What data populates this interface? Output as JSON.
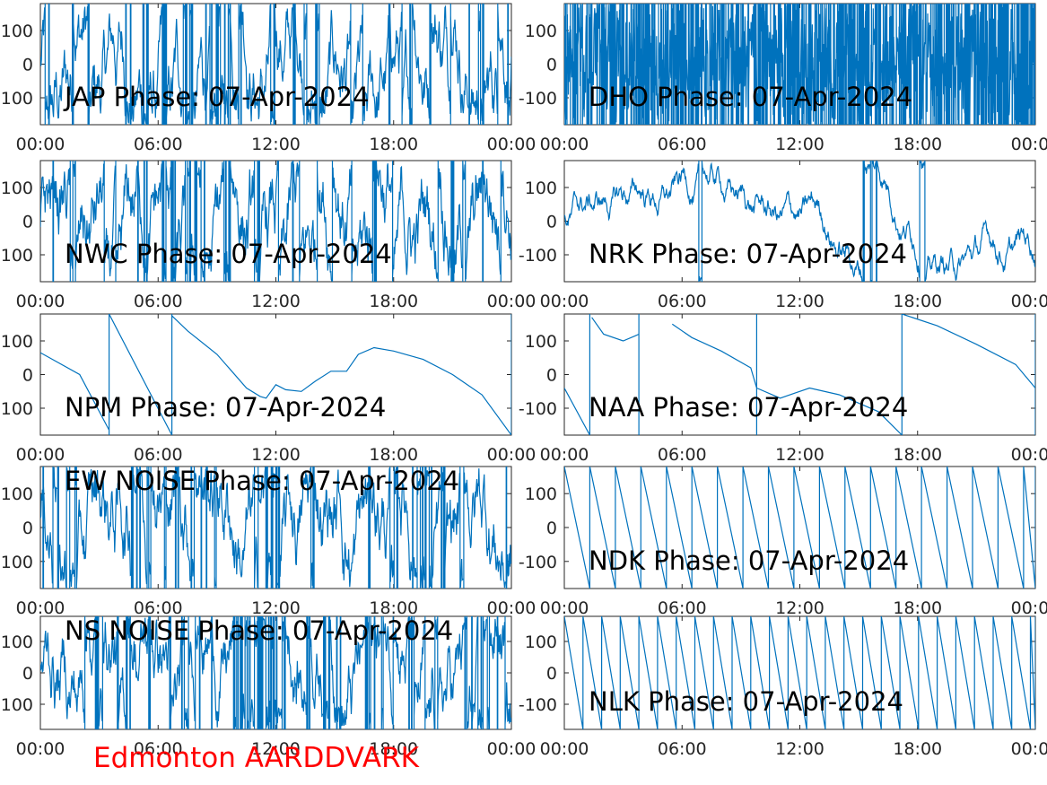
{
  "figure": {
    "footer_label": "Edmonton AARDDVARK",
    "line_color": "#0072bd",
    "footer_color": "#ff0000"
  },
  "chart_data": [
    {
      "type": "line",
      "title": "JAP Phase: 07-Apr-2024",
      "xlabel": "",
      "ylabel": "",
      "x_ticks": [
        "00:00",
        "06:00",
        "12:00",
        "18:00",
        "00:00"
      ],
      "y_ticks": [
        100,
        0,
        -100
      ],
      "y_tick_labels": [
        "100",
        "0",
        "-100"
      ],
      "xlim": [
        0,
        24
      ],
      "ylim": [
        -180,
        180
      ],
      "trace": "noisy"
    },
    {
      "type": "line",
      "title": "DHO Phase: 07-Apr-2024",
      "xlabel": "",
      "ylabel": "",
      "x_ticks": [
        "00:00",
        "06:00",
        "12:00",
        "18:00",
        "00:00"
      ],
      "y_ticks": [
        100,
        0,
        -100
      ],
      "y_tick_labels": [
        "100",
        "0",
        "-100"
      ],
      "xlim": [
        0,
        24
      ],
      "ylim": [
        -180,
        180
      ],
      "trace": "dense"
    },
    {
      "type": "line",
      "title": "NWC Phase: 07-Apr-2024",
      "xlabel": "",
      "ylabel": "",
      "x_ticks": [
        "00:00",
        "06:00",
        "12:00",
        "18:00",
        "00:00"
      ],
      "y_ticks": [
        100,
        0,
        -100
      ],
      "y_tick_labels": [
        "100",
        "0",
        "-100"
      ],
      "xlim": [
        0,
        24
      ],
      "ylim": [
        -180,
        180
      ],
      "trace": "noisy"
    },
    {
      "type": "line",
      "title": "NRK Phase: 07-Apr-2024",
      "xlabel": "",
      "ylabel": "",
      "x_ticks": [
        "00:00",
        "06:00",
        "12:00",
        "18:00",
        "00:00"
      ],
      "y_ticks": [
        100,
        0,
        -100
      ],
      "y_tick_labels": [
        "100",
        "0",
        "-100"
      ],
      "xlim": [
        0,
        24
      ],
      "ylim": [
        -180,
        180
      ],
      "trace": "nrk"
    },
    {
      "type": "line",
      "title": "NPM Phase: 07-Apr-2024",
      "xlabel": "",
      "ylabel": "",
      "x_ticks": [
        "00:00",
        "06:00",
        "12:00",
        "18:00",
        "00:00"
      ],
      "y_ticks": [
        100,
        0,
        -100
      ],
      "y_tick_labels": [
        "100",
        "0",
        "-100"
      ],
      "xlim": [
        0,
        24
      ],
      "ylim": [
        -180,
        180
      ],
      "trace": "series",
      "series": [
        {
          "x": [
            0,
            2,
            3.5
          ],
          "y": [
            65,
            0,
            -165
          ]
        },
        {
          "x": [
            3.5,
            6.7
          ],
          "y": [
            180,
            -180
          ]
        },
        {
          "x": [
            6.7,
            7.5,
            9,
            10.5,
            11.2,
            11.5,
            12,
            12.5,
            13.3,
            14,
            14.8,
            15.6,
            16.2,
            17,
            18,
            19.5,
            21,
            22.5,
            24
          ],
          "y": [
            175,
            130,
            60,
            -40,
            -65,
            -70,
            -30,
            -45,
            -50,
            -20,
            10,
            10,
            60,
            80,
            70,
            45,
            0,
            -60,
            -180
          ]
        }
      ]
    },
    {
      "type": "line",
      "title": "NAA Phase: 07-Apr-2024",
      "xlabel": "",
      "ylabel": "",
      "x_ticks": [
        "00:00",
        "06:00",
        "12:00",
        "18:00",
        "00:00"
      ],
      "y_ticks": [
        100,
        0,
        -100
      ],
      "y_tick_labels": [
        "100",
        "0",
        "-100"
      ],
      "xlim": [
        0,
        24
      ],
      "ylim": [
        -180,
        180
      ],
      "trace": "series",
      "series": [
        {
          "x": [
            0,
            1.3
          ],
          "y": [
            -40,
            -180
          ]
        },
        {
          "x": [
            1.4,
            2,
            3,
            3.6,
            3.8
          ],
          "y": [
            170,
            120,
            100,
            115,
            120
          ]
        },
        {
          "x": [
            5.5,
            6.5,
            8,
            9.5,
            9.8
          ],
          "y": [
            150,
            110,
            70,
            20,
            -40
          ]
        },
        {
          "x": [
            9.8,
            11,
            12.5,
            14,
            16,
            17.2
          ],
          "y": [
            -40,
            -70,
            -40,
            -60,
            -110,
            -180
          ]
        },
        {
          "x": [
            17.2,
            19,
            21,
            23,
            24
          ],
          "y": [
            180,
            145,
            90,
            30,
            -40
          ]
        }
      ]
    },
    {
      "type": "line",
      "title": "EW NOISE Phase: 07-Apr-2024",
      "xlabel": "",
      "ylabel": "",
      "x_ticks": [
        "00:00",
        "06:00",
        "12:00",
        "18:00",
        "00:00"
      ],
      "y_ticks": [
        100,
        0,
        -100
      ],
      "y_tick_labels": [
        "100",
        "0",
        "-100"
      ],
      "xlim": [
        0,
        24
      ],
      "ylim": [
        -180,
        180
      ],
      "trace": "noisy"
    },
    {
      "type": "line",
      "title": "NDK Phase: 07-Apr-2024",
      "xlabel": "",
      "ylabel": "",
      "x_ticks": [
        "00:00",
        "06:00",
        "12:00",
        "18:00",
        "00:00"
      ],
      "y_ticks": [
        100,
        0,
        -100
      ],
      "y_tick_labels": [
        "100",
        "0",
        "-100"
      ],
      "xlim": [
        0,
        24
      ],
      "ylim": [
        -180,
        180
      ],
      "trace": "sawtooth",
      "start": 0.3,
      "period": 1.3
    },
    {
      "type": "line",
      "title": "NS NOISE Phase: 07-Apr-2024",
      "xlabel": "",
      "ylabel": "",
      "x_ticks": [
        "00:00",
        "06:00",
        "12:00",
        "18:00",
        "00:00"
      ],
      "y_ticks": [
        100,
        0,
        -100
      ],
      "y_tick_labels": [
        "100",
        "0",
        "-100"
      ],
      "xlim": [
        0,
        24
      ],
      "ylim": [
        -180,
        180
      ],
      "trace": "noisy"
    },
    {
      "type": "line",
      "title": "NLK Phase: 07-Apr-2024",
      "xlabel": "",
      "ylabel": "",
      "x_ticks": [
        "00:00",
        "06:00",
        "12:00",
        "18:00",
        "00:00"
      ],
      "y_ticks": [
        100,
        0,
        -100
      ],
      "y_tick_labels": [
        "100",
        "0",
        "-100"
      ],
      "xlim": [
        0,
        24
      ],
      "ylim": [
        -180,
        180
      ],
      "trace": "sawtooth",
      "start": 0.6,
      "period": 0.95
    }
  ]
}
